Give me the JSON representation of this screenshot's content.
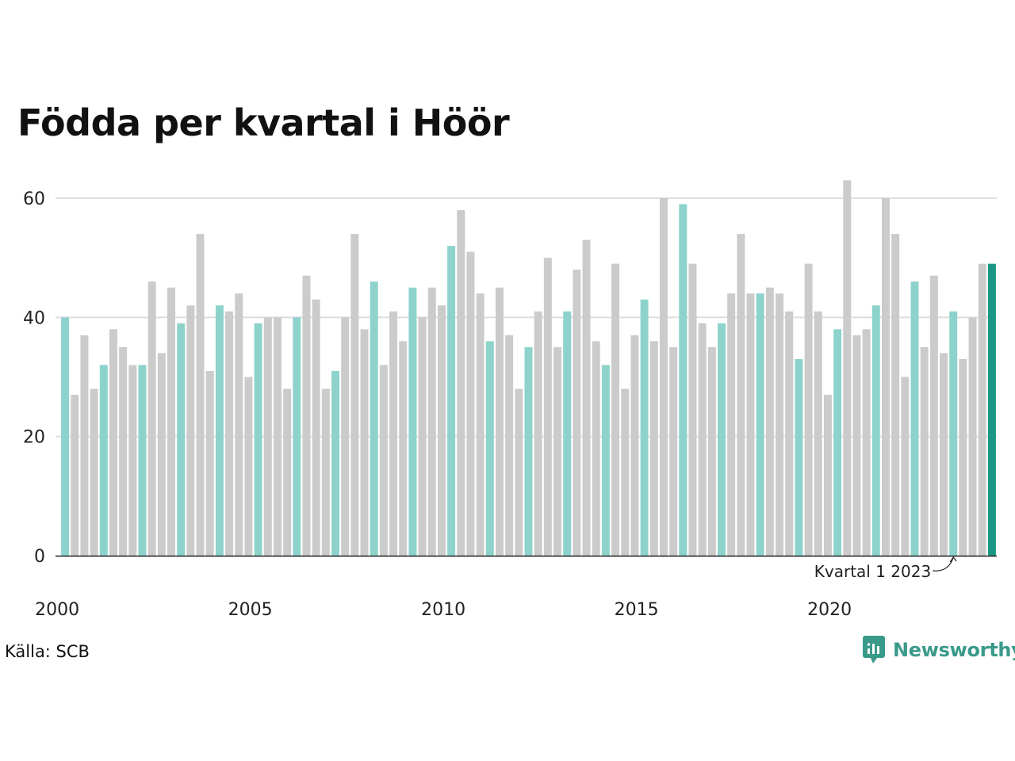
{
  "chart_data": {
    "type": "bar",
    "title": "Födda per kvartal i Höör",
    "ylim": [
      0,
      63
    ],
    "yticks": [
      0,
      20,
      40,
      60
    ],
    "xticks": [
      "2000",
      "2005",
      "2010",
      "2015",
      "2020"
    ],
    "grid": true,
    "highlight_quarter": 1,
    "annotation": "Kvartal 1 2023",
    "values": [
      40,
      27,
      37,
      28,
      32,
      38,
      35,
      32,
      32,
      46,
      34,
      45,
      39,
      42,
      54,
      31,
      42,
      41,
      44,
      30,
      39,
      40,
      40,
      28,
      40,
      47,
      43,
      28,
      31,
      40,
      54,
      38,
      46,
      32,
      41,
      36,
      45,
      40,
      45,
      42,
      52,
      58,
      51,
      44,
      36,
      45,
      37,
      28,
      35,
      41,
      50,
      35,
      41,
      48,
      53,
      36,
      32,
      49,
      28,
      37,
      43,
      36,
      60,
      35,
      59,
      49,
      39,
      35,
      39,
      44,
      54,
      44,
      44,
      45,
      44,
      41,
      33,
      49,
      41,
      27,
      38,
      63,
      37,
      38,
      42,
      60,
      54,
      30,
      46,
      35,
      47,
      34,
      41,
      33,
      40,
      49,
      49
    ]
  },
  "colors": {
    "q1_bar": "#8dd3cb",
    "other_bar": "#cbcbcb",
    "latest_bar": "#1a9684",
    "grid": "#dedede",
    "axis": "#222222"
  },
  "source": "Källa: SCB",
  "brand": {
    "name": "Newsworthy",
    "icon": "newsworthy-logo-icon",
    "color": "#3a9a8a"
  }
}
